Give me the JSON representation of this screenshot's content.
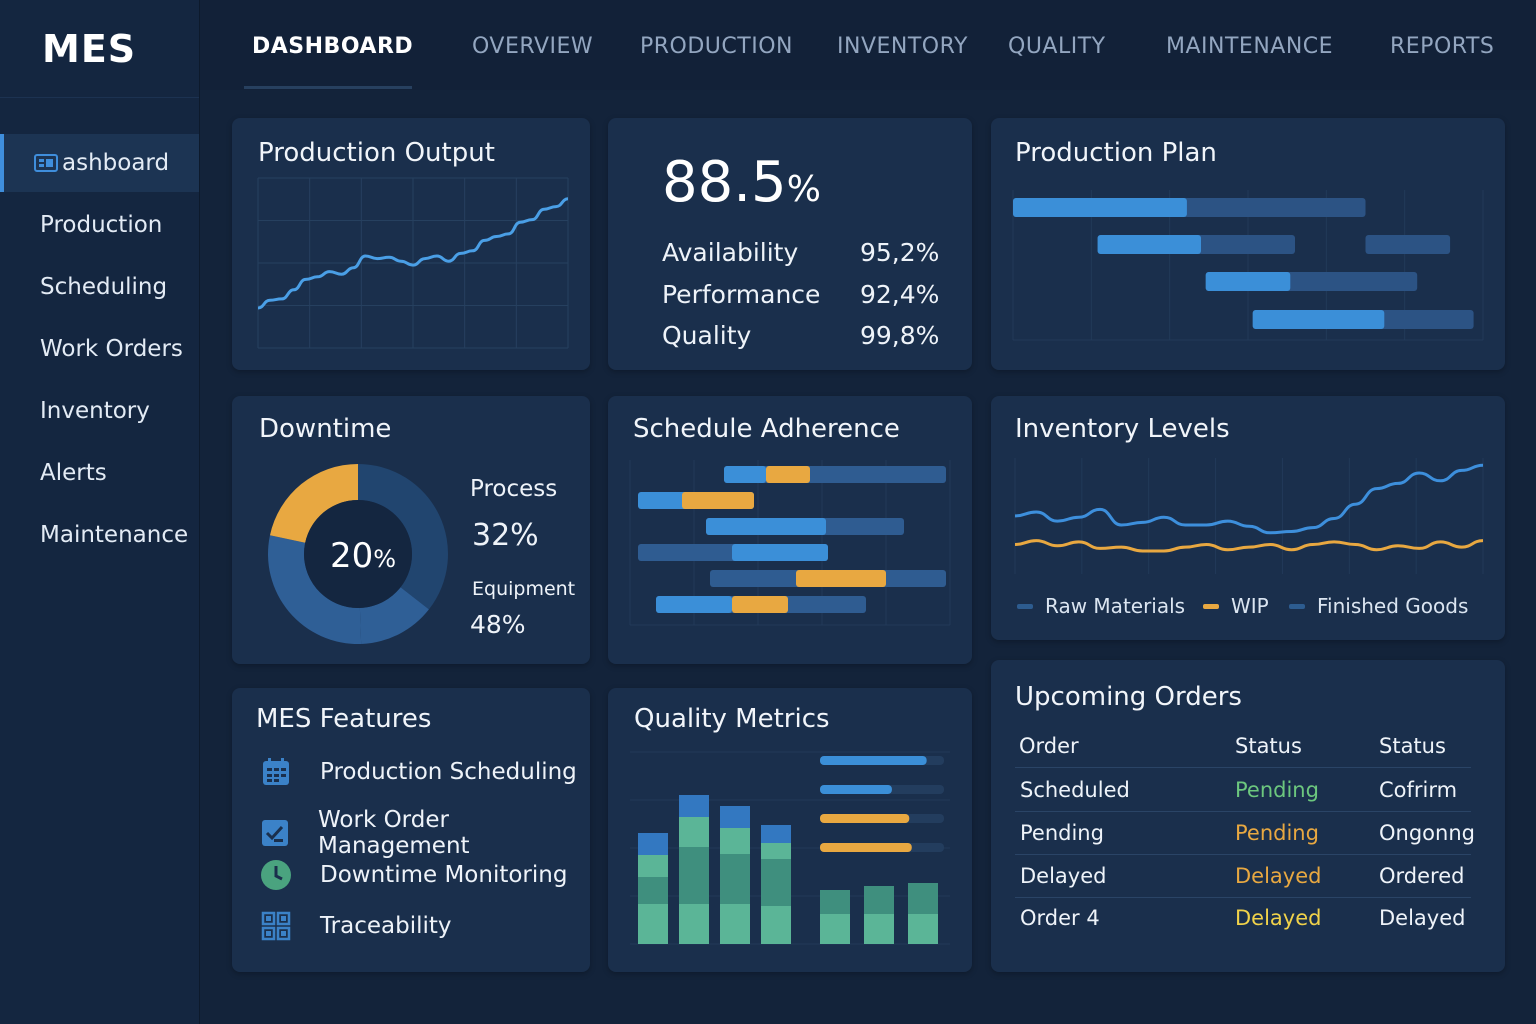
{
  "app": {
    "logo": "MES"
  },
  "nav": {
    "tabs": [
      {
        "label": "DASHBOARD",
        "active": true
      },
      {
        "label": "OVERVIEW"
      },
      {
        "label": "PRODUCTION"
      },
      {
        "label": "INVENTORY"
      },
      {
        "label": "QUALITY"
      },
      {
        "label": "MAINTENANCE"
      },
      {
        "label": "REPORTS"
      }
    ]
  },
  "sidebar": {
    "items": [
      {
        "label": "ashboard",
        "icon": "dashboard-icon",
        "active": true
      },
      {
        "label": "Production"
      },
      {
        "label": "Scheduling"
      },
      {
        "label": "Work Orders"
      },
      {
        "label": "Inventory"
      },
      {
        "label": "Alerts"
      },
      {
        "label": "Maintenance"
      }
    ]
  },
  "production_output": {
    "title": "Production Output",
    "line_color": "#4a9fe6",
    "values": [
      0,
      6,
      7,
      14,
      22,
      24,
      28,
      26,
      31,
      40,
      38,
      39,
      36,
      33,
      38,
      40,
      36,
      42,
      44,
      52,
      55,
      57,
      66,
      68,
      76,
      78,
      84
    ]
  },
  "oee": {
    "value": "88.5",
    "unit": "%",
    "metrics": [
      {
        "label": "Availability",
        "value": "95,2%"
      },
      {
        "label": "Performance",
        "value": "92,4%"
      },
      {
        "label": "Quality",
        "value": "99,8%"
      }
    ]
  },
  "production_plan": {
    "title": "Production Plan",
    "colors": {
      "done": "#3b8fd8",
      "planned": "#2c5384"
    },
    "rows": [
      {
        "start": 0.0,
        "done": 0.37,
        "end": 0.75
      },
      {
        "start": 0.18,
        "done": 0.4,
        "end": 0.6,
        "extra_start": 0.75,
        "extra_end": 0.93
      },
      {
        "start": 0.41,
        "done": 0.59,
        "end": 0.86
      },
      {
        "start": 0.51,
        "done": 0.79,
        "end": 0.98
      }
    ]
  },
  "downtime": {
    "title": "Downtime",
    "center_value": "20",
    "center_unit": "%",
    "colors": {
      "highlight": "#e8a841",
      "ring": "#2f5f96",
      "ring_dark": "#21456f"
    },
    "items": [
      {
        "label": "Process",
        "value": "32%"
      },
      {
        "label": "Equipment",
        "value": "48%"
      }
    ]
  },
  "schedule_adherence": {
    "title": "Schedule Adherence",
    "colors": {
      "plan": "#2f5c91",
      "actual": "#3b8fd8",
      "delay": "#e8a841"
    }
  },
  "inventory_levels": {
    "title": "Inventory Levels",
    "series": [
      {
        "name": "Raw Materials",
        "color": "#3d8fdc",
        "values": [
          37,
          40,
          33,
          36,
          42,
          30,
          32,
          36,
          30,
          30,
          33,
          29,
          24,
          25,
          28,
          35,
          46,
          58,
          62,
          70,
          64,
          72,
          76
        ]
      },
      {
        "name": "WIP",
        "color": "#e8a841",
        "values": [
          15,
          18,
          14,
          17,
          12,
          13,
          10,
          10,
          13,
          15,
          11,
          13,
          15,
          11,
          15,
          17,
          15,
          11,
          14,
          12,
          17,
          13,
          18
        ]
      },
      {
        "name": "Finished Goods",
        "color": "#2d5c8f"
      }
    ]
  },
  "mes_features": {
    "title": "MES Features",
    "items": [
      {
        "label": "Production Scheduling",
        "icon": "calendar-icon"
      },
      {
        "label": "Work Order Management",
        "icon": "checklist-icon"
      },
      {
        "label": "Downtime Monitoring",
        "icon": "clock-icon"
      },
      {
        "label": "Traceability",
        "icon": "qr-code-icon"
      }
    ]
  },
  "quality_metrics": {
    "title": "Quality Metrics",
    "colors": {
      "blue": "#3378c1",
      "green_dark": "#3f8f7e",
      "green": "#5bb597",
      "amber": "#e8a841"
    },
    "stacked_bars": [
      [
        40,
        27,
        22,
        22
      ],
      [
        40,
        57,
        30,
        22
      ],
      [
        40,
        50,
        26,
        22
      ],
      [
        38,
        47,
        16,
        18
      ]
    ],
    "short_bars": [
      22,
      28,
      31
    ],
    "progress": [
      {
        "fill": 0.86,
        "color": "#3b8fd8"
      },
      {
        "fill": 0.58,
        "color": "#3b8fd8"
      },
      {
        "fill": 0.72,
        "color": "#e8a841"
      },
      {
        "fill": 0.74,
        "color": "#e8a841"
      }
    ]
  },
  "upcoming_orders": {
    "title": "Upcoming Orders",
    "headers": [
      "Order",
      "Status",
      "Status"
    ],
    "status_colors": {
      "Pending-green": "#6cc77e",
      "Pending-amber": "#e8a841",
      "Delayed-amber": "#e8a841",
      "Delayed-yellow": "#f0d24a"
    },
    "rows": [
      {
        "order": "Scheduled",
        "status": "Pending",
        "status_color": "#6cc77e",
        "status2": "Cofrirm"
      },
      {
        "order": "Pending",
        "status": "Pending",
        "status_color": "#e8a841",
        "status2": "Ongonng"
      },
      {
        "order": "Delayed",
        "status": "Delayed",
        "status_color": "#e8a841",
        "status2": "Ordered"
      },
      {
        "order": "Order  4",
        "status": "Delayed",
        "status_color": "#f0d24a",
        "status2": "Delayed"
      }
    ]
  }
}
